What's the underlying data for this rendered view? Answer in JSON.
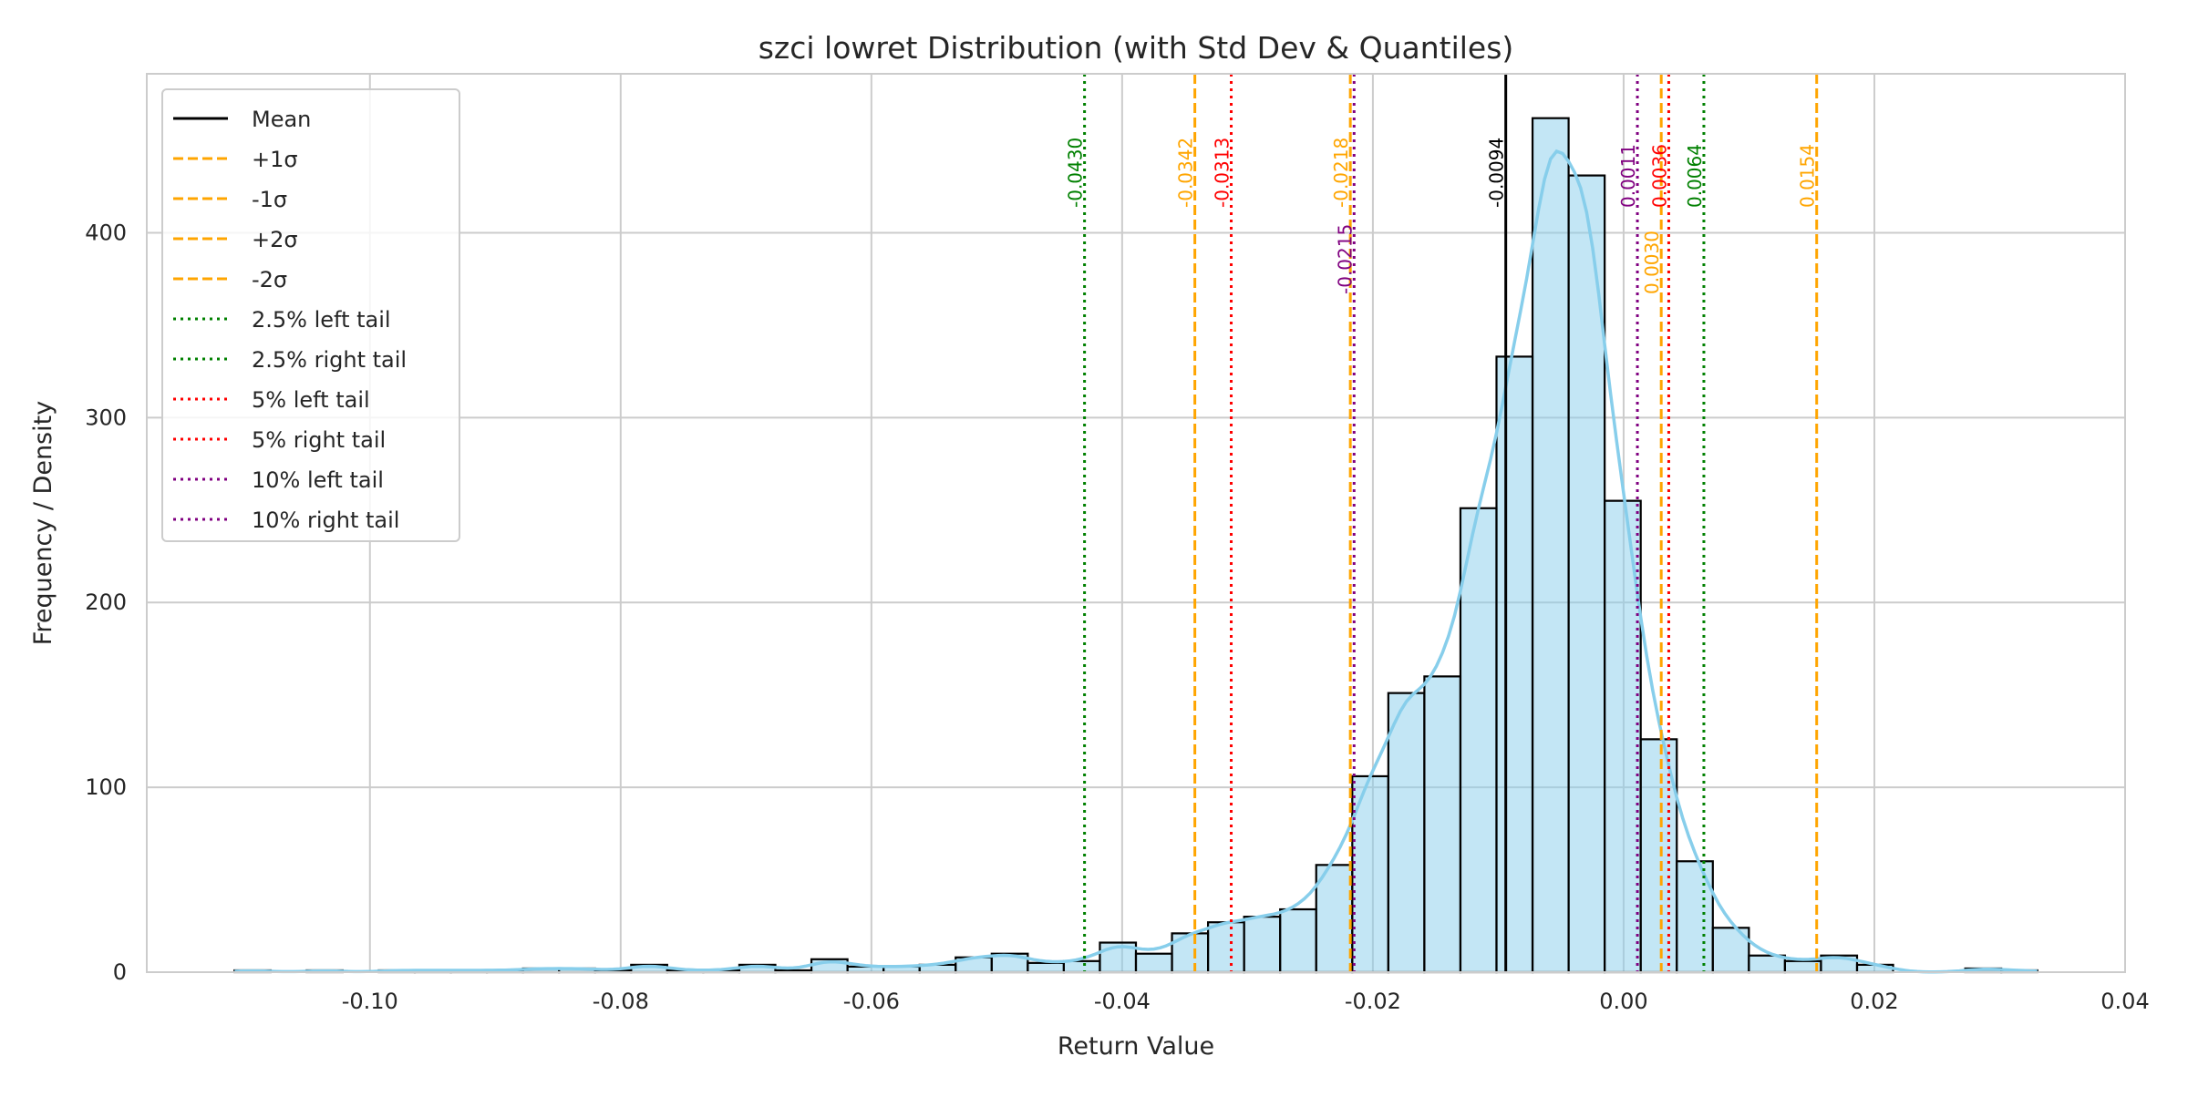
{
  "chart_data": {
    "type": "bar",
    "subtype": "histogram-with-kde",
    "title": "szci lowret Distribution (with Std Dev & Quantiles)",
    "xlabel": "Return Value",
    "ylabel": "Frequency / Density",
    "xlim": [
      -0.1178,
      0.04
    ],
    "ylim": [
      0,
      486
    ],
    "xticks": [
      -0.1,
      -0.08,
      -0.06,
      -0.04,
      -0.02,
      0.0,
      0.02,
      0.04
    ],
    "xtick_labels": [
      "-0.10",
      "-0.08",
      "-0.06",
      "-0.04",
      "-0.02",
      "0.00",
      "0.02",
      "0.04"
    ],
    "yticks": [
      0,
      100,
      200,
      300,
      400
    ],
    "ytick_labels": [
      "0",
      "100",
      "200",
      "300",
      "400"
    ],
    "grid": true,
    "legend_position": "top-left",
    "bin_start": -0.1108,
    "bin_width": 0.002876,
    "counts": [
      1,
      0,
      1,
      0,
      1,
      1,
      1,
      1,
      2,
      2,
      1,
      4,
      1,
      1,
      4,
      1,
      7,
      3,
      3,
      4,
      8,
      10,
      5,
      6,
      16,
      10,
      21,
      27,
      30,
      34,
      58,
      106,
      151,
      160,
      251,
      333,
      462,
      431,
      255,
      126,
      60,
      24,
      9,
      6,
      9,
      4,
      0,
      0,
      2,
      1
    ],
    "kde": {
      "name": "KDE",
      "color": "#87ceeb"
    },
    "bar_color": "#87ceeb",
    "reference_lines": [
      {
        "legend": "Mean",
        "value": -0.0094,
        "label": "-0.0094",
        "color": "#000000",
        "style": "solid"
      },
      {
        "legend": "+1σ",
        "value": 0.003,
        "label": "0.0030",
        "color": "#ffa500",
        "style": "dashed"
      },
      {
        "legend": "-1σ",
        "value": -0.0218,
        "label": "-0.0218",
        "color": "#ffa500",
        "style": "dashed"
      },
      {
        "legend": "+2σ",
        "value": 0.0154,
        "label": "0.0154",
        "color": "#ffa500",
        "style": "dashed"
      },
      {
        "legend": "-2σ",
        "value": -0.0342,
        "label": "-0.0342",
        "color": "#ffa500",
        "style": "dashed"
      },
      {
        "legend": "2.5% left tail",
        "value": -0.043,
        "label": "-0.0430",
        "color": "#008000",
        "style": "dotted"
      },
      {
        "legend": "2.5% right tail",
        "value": 0.0064,
        "label": "0.0064",
        "color": "#008000",
        "style": "dotted"
      },
      {
        "legend": "5% left tail",
        "value": -0.0313,
        "label": "-0.0313",
        "color": "#ff0000",
        "style": "dotted"
      },
      {
        "legend": "5% right tail",
        "value": 0.0036,
        "label": "0.0036",
        "color": "#ff0000",
        "style": "dotted"
      },
      {
        "legend": "10% left tail",
        "value": -0.0215,
        "label": "-0.0215",
        "color": "#800080",
        "style": "dotted"
      },
      {
        "legend": "10% right tail",
        "value": 0.0011,
        "label": "0.0011",
        "color": "#800080",
        "style": "dotted"
      }
    ]
  }
}
